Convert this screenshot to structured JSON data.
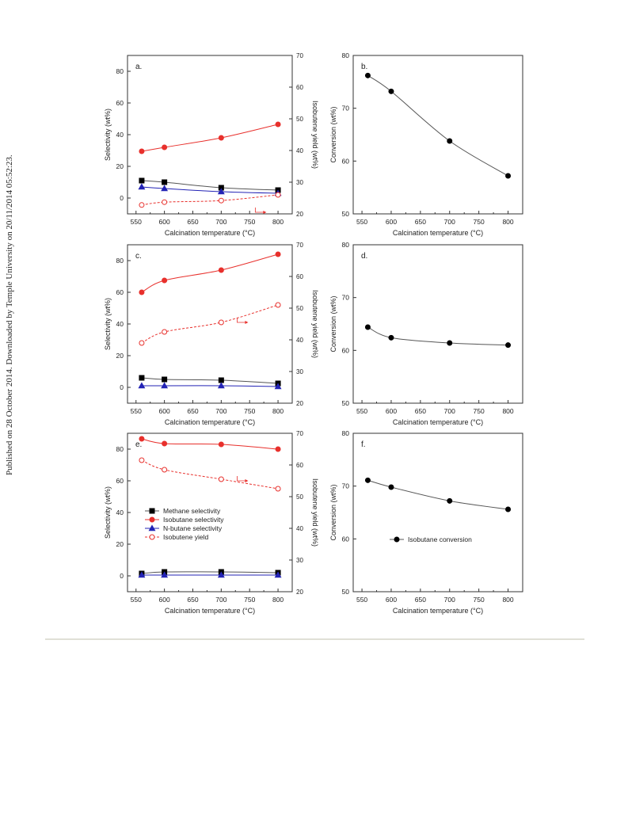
{
  "side_note": "Published on 28 October 2014. Downloaded by Temple University on 20/11/2014 05:52:23.",
  "chart_data": [
    {
      "panel_label": "a.",
      "type": "line",
      "xlabel": "Calcination temperature (°C)",
      "ylabel": "Selectivity (wt%)",
      "y2label": "Isobutene yield (wt%)",
      "xlim": [
        535,
        825
      ],
      "xticks": [
        550,
        600,
        650,
        700,
        750,
        800
      ],
      "ylim": [
        -10,
        90
      ],
      "yticks": [
        0,
        20,
        40,
        60,
        80
      ],
      "y2lim": [
        20,
        70
      ],
      "y2ticks": [
        20,
        30,
        40,
        50,
        60,
        70
      ],
      "series": [
        {
          "name": "Methane selectivity",
          "axis": "left",
          "x": [
            560,
            600,
            700,
            800
          ],
          "y": [
            11,
            10,
            6.5,
            5
          ],
          "color": "#000000",
          "marker": "square",
          "filled": true,
          "dash": false
        },
        {
          "name": "Isobutane selectivity",
          "axis": "left",
          "x": [
            560,
            600,
            700,
            800
          ],
          "y": [
            29.5,
            32,
            38,
            46.5
          ],
          "color": "#e8302c",
          "marker": "circle",
          "filled": true,
          "dash": false
        },
        {
          "name": "N-butane selectivity",
          "axis": "left",
          "x": [
            560,
            600,
            700,
            800
          ],
          "y": [
            7,
            6,
            4,
            3
          ],
          "color": "#2323b5",
          "marker": "triangle",
          "filled": true,
          "dash": false
        },
        {
          "name": "Isobutene yield",
          "axis": "right",
          "x": [
            560,
            600,
            700,
            800
          ],
          "y": [
            22.8,
            23.7,
            24.2,
            26
          ],
          "color": "#e8302c",
          "marker": "circle",
          "filled": false,
          "dash": true
        }
      ],
      "legend_shown": false,
      "arrow_at": [
        760,
        20.5
      ]
    },
    {
      "panel_label": "b.",
      "type": "line",
      "xlabel": "Calcination temperature (°C)",
      "ylabel": "Conversion (wt%)",
      "xlim": [
        535,
        825
      ],
      "xticks": [
        550,
        600,
        650,
        700,
        750,
        800
      ],
      "ylim": [
        50,
        80
      ],
      "yticks": [
        50,
        60,
        70,
        80
      ],
      "series": [
        {
          "name": "Isobutane conversion",
          "axis": "left",
          "x": [
            560,
            600,
            700,
            800
          ],
          "y": [
            76.2,
            73.2,
            63.8,
            57.2
          ],
          "color": "#000000",
          "marker": "circle",
          "filled": true,
          "dash": false
        }
      ],
      "legend_shown": false
    },
    {
      "panel_label": "c.",
      "type": "line",
      "xlabel": "Calcination temperature (°C)",
      "ylabel": "Selectivity (wt%)",
      "y2label": "Isobutene yield (wt%)",
      "xlim": [
        535,
        825
      ],
      "xticks": [
        550,
        600,
        650,
        700,
        750,
        800
      ],
      "ylim": [
        -10,
        90
      ],
      "yticks": [
        0,
        20,
        40,
        60,
        80
      ],
      "y2lim": [
        20,
        70
      ],
      "y2ticks": [
        20,
        30,
        40,
        50,
        60,
        70
      ],
      "series": [
        {
          "name": "Methane selectivity",
          "axis": "left",
          "x": [
            560,
            600,
            700,
            800
          ],
          "y": [
            6,
            5,
            4.5,
            2.5
          ],
          "color": "#000000",
          "marker": "square",
          "filled": true,
          "dash": false
        },
        {
          "name": "Isobutane selectivity",
          "axis": "left",
          "x": [
            560,
            600,
            700,
            800
          ],
          "y": [
            60,
            67.5,
            74,
            84
          ],
          "color": "#e8302c",
          "marker": "circle",
          "filled": true,
          "dash": false
        },
        {
          "name": "N-butane selectivity",
          "axis": "left",
          "x": [
            560,
            600,
            700,
            800
          ],
          "y": [
            1,
            1,
            1,
            0.5
          ],
          "color": "#2323b5",
          "marker": "triangle",
          "filled": true,
          "dash": false
        },
        {
          "name": "Isobutene yield",
          "axis": "right",
          "x": [
            560,
            600,
            700,
            800
          ],
          "y": [
            39,
            42.5,
            45.5,
            51
          ],
          "color": "#e8302c",
          "marker": "circle",
          "filled": false,
          "dash": true
        }
      ],
      "legend_shown": false,
      "arrow_at": [
        728,
        45.5
      ]
    },
    {
      "panel_label": "d.",
      "type": "line",
      "xlabel": "Calcination temperature (°C)",
      "ylabel": "Conversion (wt%)",
      "xlim": [
        535,
        825
      ],
      "xticks": [
        550,
        600,
        650,
        700,
        750,
        800
      ],
      "ylim": [
        50,
        80
      ],
      "yticks": [
        50,
        60,
        70,
        80
      ],
      "series": [
        {
          "name": "Isobutane conversion",
          "axis": "left",
          "x": [
            560,
            600,
            700,
            800
          ],
          "y": [
            64.4,
            62.4,
            61.4,
            61
          ],
          "color": "#000000",
          "marker": "circle",
          "filled": true,
          "dash": false
        }
      ],
      "legend_shown": false
    },
    {
      "panel_label": "e.",
      "type": "line",
      "xlabel": "Calcination temperature (°C)",
      "ylabel": "Selectivity (wt%)",
      "y2label": "Isobutene yield (wt%)",
      "xlim": [
        535,
        825
      ],
      "xticks": [
        550,
        600,
        650,
        700,
        750,
        800
      ],
      "ylim": [
        -10,
        90
      ],
      "yticks": [
        0,
        20,
        40,
        60,
        80
      ],
      "y2lim": [
        20,
        70
      ],
      "y2ticks": [
        20,
        30,
        40,
        50,
        60,
        70
      ],
      "series": [
        {
          "name": "Methane selectivity",
          "axis": "left",
          "x": [
            560,
            600,
            700,
            800
          ],
          "y": [
            1.5,
            2.5,
            2.5,
            2
          ],
          "color": "#000000",
          "marker": "square",
          "filled": true,
          "dash": false
        },
        {
          "name": "Isobutane selectivity",
          "axis": "left",
          "x": [
            560,
            600,
            700,
            800
          ],
          "y": [
            86.5,
            83.5,
            83,
            80
          ],
          "color": "#e8302c",
          "marker": "circle",
          "filled": true,
          "dash": false
        },
        {
          "name": "N-butane selectivity",
          "axis": "left",
          "x": [
            560,
            600,
            700,
            800
          ],
          "y": [
            0.5,
            0.5,
            0.5,
            0.5
          ],
          "color": "#2323b5",
          "marker": "triangle",
          "filled": true,
          "dash": false
        },
        {
          "name": "Isobutene yield",
          "axis": "right",
          "x": [
            560,
            600,
            700,
            800
          ],
          "y": [
            61.5,
            58.5,
            55.5,
            52.5
          ],
          "color": "#e8302c",
          "marker": "circle",
          "filled": false,
          "dash": true
        }
      ],
      "legend_shown": true,
      "legend_position": "middle-left",
      "arrow_at": [
        728,
        55
      ]
    },
    {
      "panel_label": "f.",
      "type": "line",
      "xlabel": "Calcination temperature (°C)",
      "ylabel": "Conversion (wt%)",
      "xlim": [
        535,
        825
      ],
      "xticks": [
        550,
        600,
        650,
        700,
        750,
        800
      ],
      "ylim": [
        50,
        80
      ],
      "yticks": [
        50,
        60,
        70,
        80
      ],
      "series": [
        {
          "name": "Isobutane conversion",
          "axis": "left",
          "x": [
            560,
            600,
            700,
            800
          ],
          "y": [
            71.1,
            69.8,
            67.2,
            65.6
          ],
          "color": "#000000",
          "marker": "circle",
          "filled": true,
          "dash": false
        }
      ],
      "legend_shown": true,
      "legend_position": "middle-left"
    }
  ]
}
